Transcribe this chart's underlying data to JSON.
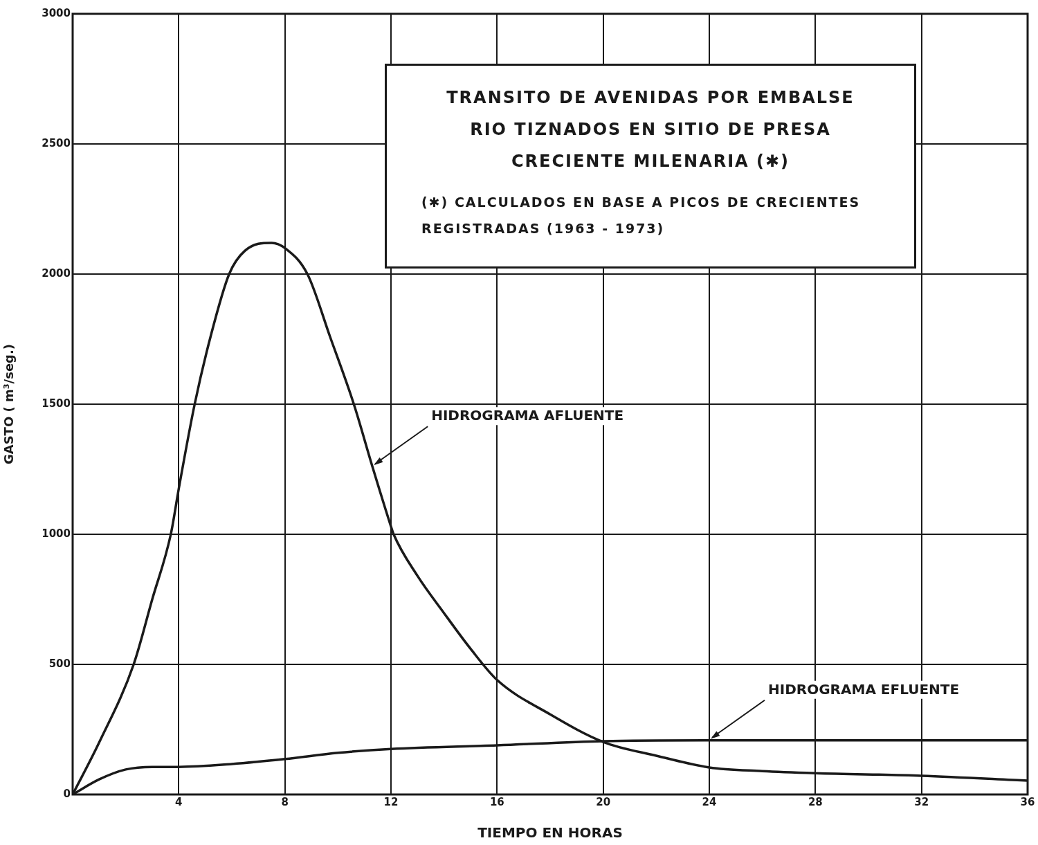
{
  "chart_data": {
    "type": "line",
    "title": "TRANSITO DE AVENIDAS POR EMBALSE",
    "subtitle": "RIO TIZNADOS EN SITIO DE PRESA",
    "xlabel": "TIEMPO EN HORAS",
    "ylabel": "GASTO ( m³/seg.)",
    "xlim": [
      0,
      36
    ],
    "xticks": [
      {
        "value": 0,
        "label": null
      },
      4,
      8,
      12,
      16,
      20,
      24,
      28,
      32,
      36
    ],
    "ylim": [
      0,
      3000
    ],
    "yticks": [
      0,
      500,
      1000,
      1500,
      2000,
      2500,
      3000
    ],
    "grid": true,
    "legend": false,
    "marker": "none",
    "line_style": "solid",
    "series": [
      {
        "color": "#1a1a1a",
        "x": [
          0,
          1,
          2.3,
          3,
          3.7,
          4,
          4.6,
          5.2,
          5.9,
          6.5,
          7.5,
          8,
          8.85,
          9.7,
          10.6,
          11.3,
          12,
          12.1,
          13,
          14,
          15,
          16,
          18,
          20,
          22,
          24,
          26,
          28,
          32,
          36
        ],
        "values": [
          0,
          200,
          500,
          750,
          1000,
          1175,
          1500,
          1760,
          2000,
          2090,
          2120,
          2100,
          2000,
          1760,
          1500,
          1260,
          1030,
          1000,
          840,
          697,
          560,
          440,
          308,
          202,
          149,
          104,
          90,
          82,
          72,
          53
        ]
      },
      {
        "color": "#1a1a1a",
        "x": [
          0,
          1,
          2,
          3,
          4,
          6,
          8,
          10,
          12,
          16,
          20,
          24,
          28,
          32,
          36
        ],
        "values": [
          0,
          58,
          96,
          106,
          106,
          117,
          136,
          160,
          175,
          189,
          205,
          208,
          208,
          208,
          208
        ]
      }
    ],
    "annotations": [
      "CRECIENTE MILENARIA (✱)",
      "(✱) CALCULADOS EN BASE A PICOS DE CRECIENTES REGISTRADAS (1963 - 1973)",
      {
        "text": "HIDROGRAMA AFLUENTE",
        "x": 11.3,
        "y": 1260
      },
      {
        "text": "HIDROGRAMA EFLUENTE",
        "x": 24,
        "y": 208
      }
    ]
  }
}
